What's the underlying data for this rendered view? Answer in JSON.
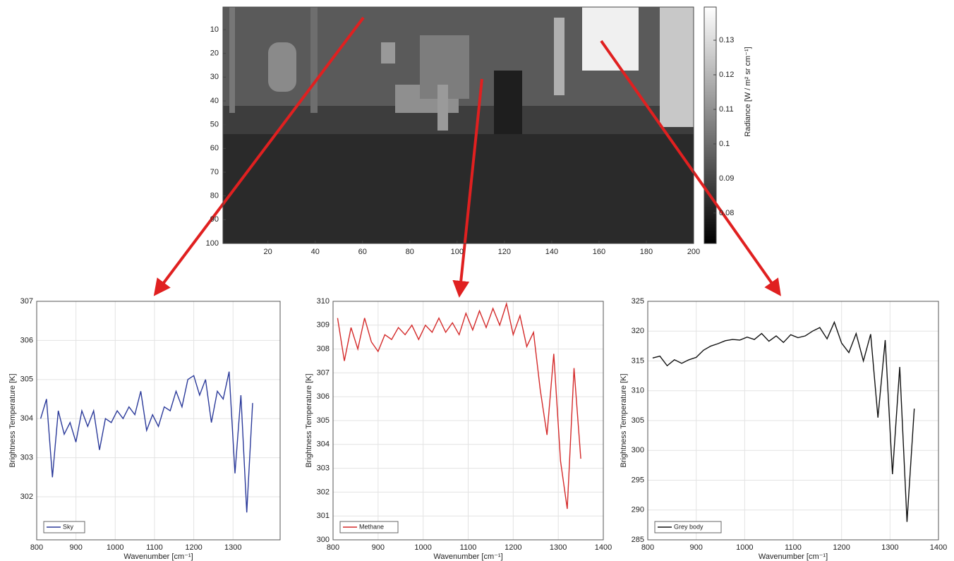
{
  "chart_data": [
    {
      "type": "image",
      "xlim": [
        1,
        200
      ],
      "ylim": [
        0.5,
        100
      ],
      "xticks": [
        20,
        40,
        60,
        80,
        100,
        120,
        140,
        160,
        180,
        200
      ],
      "yticks": [
        10,
        20,
        30,
        40,
        50,
        60,
        70,
        80,
        90,
        100
      ],
      "colorbar": {
        "label": "Radiance [W / m² sr cm⁻¹]",
        "lim": [
          0.0712,
          0.1396
        ],
        "ticks": [
          0.08,
          0.09,
          0.1,
          0.11,
          0.12,
          0.13
        ]
      }
    },
    {
      "type": "line",
      "xlabel": "Wavenumber [cm⁻¹]",
      "ylabel": "Brightness Temperature [K]",
      "x": [
        810,
        825,
        840,
        855,
        870,
        885,
        900,
        915,
        930,
        945,
        960,
        975,
        990,
        1005,
        1020,
        1035,
        1050,
        1065,
        1080,
        1095,
        1110,
        1125,
        1140,
        1155,
        1170,
        1185,
        1200,
        1215,
        1230,
        1245,
        1260,
        1275,
        1290,
        1305,
        1320,
        1335,
        1350
      ],
      "series": [
        {
          "name": "Sky",
          "color": "#2b3a9a",
          "values": [
            304.0,
            304.5,
            302.5,
            304.2,
            303.6,
            303.9,
            303.4,
            304.2,
            303.8,
            304.2,
            303.2,
            304.0,
            303.9,
            304.2,
            304.0,
            304.3,
            304.1,
            304.7,
            303.7,
            304.1,
            303.8,
            304.3,
            304.2,
            304.7,
            304.3,
            305.0,
            305.1,
            304.6,
            305.0,
            303.9,
            304.7,
            304.5,
            305.2,
            302.6,
            304.6,
            301.6,
            304.4
          ]
        }
      ],
      "xlim": [
        800,
        1420
      ],
      "ylim": [
        300.9,
        307
      ],
      "xticks": [
        800,
        900,
        1000,
        1100,
        1200,
        1300
      ],
      "yticks": [
        302,
        303,
        304,
        305,
        306,
        307
      ],
      "grid": true,
      "legend": "lower left"
    },
    {
      "type": "line",
      "xlabel": "Wavenumber [cm⁻¹]",
      "ylabel": "Brightness Temperature [K]",
      "x": [
        810,
        825,
        840,
        855,
        870,
        885,
        900,
        915,
        930,
        945,
        960,
        975,
        990,
        1005,
        1020,
        1035,
        1050,
        1065,
        1080,
        1095,
        1110,
        1125,
        1140,
        1155,
        1170,
        1185,
        1200,
        1215,
        1230,
        1245,
        1260,
        1275,
        1290,
        1305,
        1320,
        1335,
        1350
      ],
      "series": [
        {
          "name": "Methane",
          "color": "#d42a2a",
          "values": [
            309.3,
            307.5,
            308.9,
            308.0,
            309.3,
            308.3,
            307.9,
            308.6,
            308.4,
            308.9,
            308.6,
            309.0,
            308.4,
            309.0,
            308.7,
            309.3,
            308.7,
            309.1,
            308.6,
            309.5,
            308.8,
            309.6,
            308.9,
            309.7,
            309.0,
            309.9,
            308.6,
            309.4,
            308.1,
            308.7,
            306.3,
            304.4,
            307.8,
            303.3,
            301.3,
            307.2,
            303.4
          ]
        }
      ],
      "xlim": [
        800,
        1400
      ],
      "ylim": [
        300,
        310
      ],
      "xticks": [
        800,
        900,
        1000,
        1100,
        1200,
        1300,
        1400
      ],
      "yticks": [
        300,
        301,
        302,
        303,
        304,
        305,
        306,
        307,
        308,
        309,
        310
      ],
      "grid": true,
      "legend": "lower left"
    },
    {
      "type": "line",
      "xlabel": "Wavenumber [cm⁻¹]",
      "ylabel": "Brightness Temperature [K]",
      "x": [
        810,
        825,
        840,
        855,
        870,
        885,
        900,
        915,
        930,
        945,
        960,
        975,
        990,
        1005,
        1020,
        1035,
        1050,
        1065,
        1080,
        1095,
        1110,
        1125,
        1140,
        1155,
        1170,
        1185,
        1200,
        1215,
        1230,
        1245,
        1260,
        1275,
        1290,
        1305,
        1320,
        1335,
        1350
      ],
      "series": [
        {
          "name": "Grey body",
          "color": "#111111",
          "values": [
            315.5,
            315.8,
            314.2,
            315.2,
            314.6,
            315.2,
            315.6,
            316.8,
            317.5,
            317.9,
            318.4,
            318.6,
            318.5,
            319.0,
            318.6,
            319.6,
            318.3,
            319.2,
            318.1,
            319.4,
            318.9,
            319.2,
            320.0,
            320.6,
            318.7,
            321.5,
            318.0,
            316.4,
            319.6,
            315.0,
            319.5,
            305.5,
            318.5,
            296.0,
            314.0,
            288.0,
            307.0
          ]
        }
      ],
      "xlim": [
        800,
        1400
      ],
      "ylim": [
        285,
        325
      ],
      "xticks": [
        800,
        900,
        1000,
        1100,
        1200,
        1300,
        1400
      ],
      "yticks": [
        285,
        290,
        295,
        300,
        305,
        310,
        315,
        320,
        325
      ],
      "grid": true,
      "legend": "lower left"
    }
  ]
}
